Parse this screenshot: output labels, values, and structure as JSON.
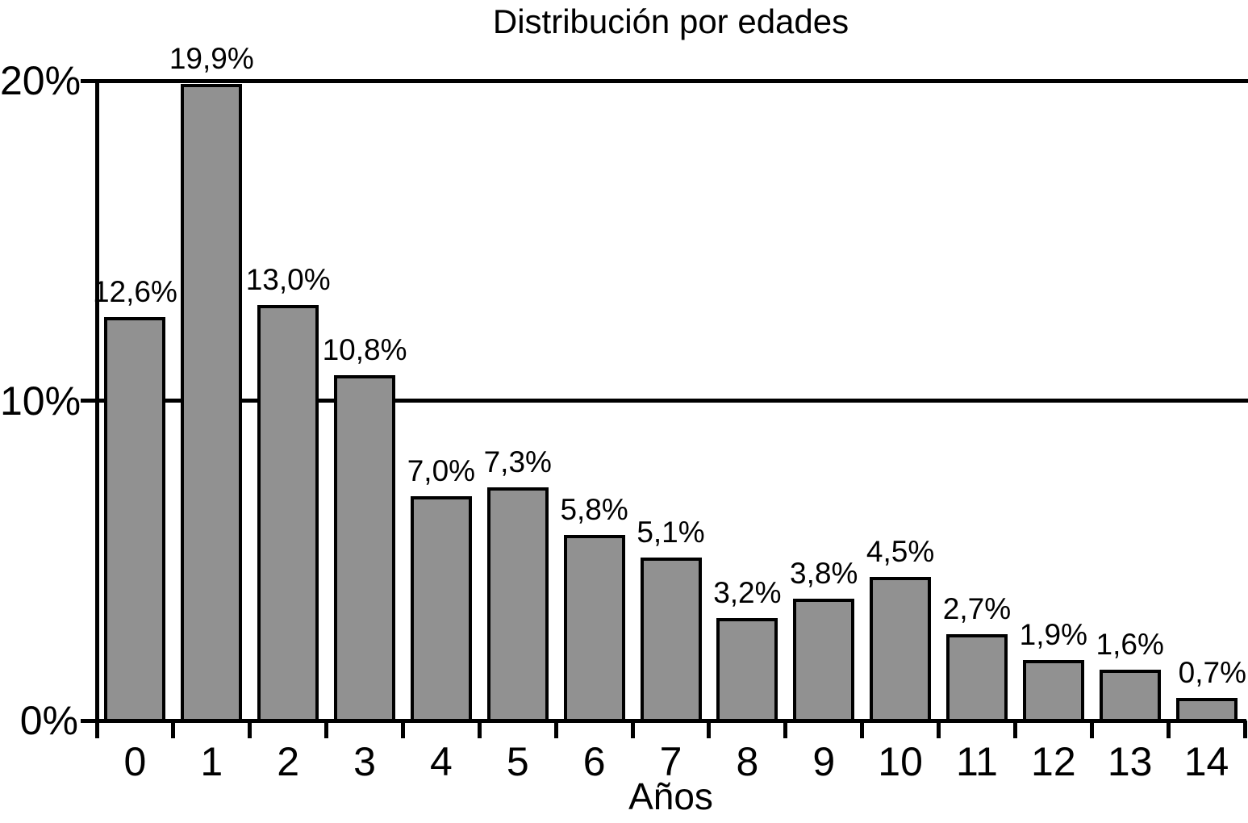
{
  "chart_data": {
    "type": "bar",
    "title": "Distribución por edades",
    "xlabel": "Años",
    "ylabel": "",
    "categories": [
      "0",
      "1",
      "2",
      "3",
      "4",
      "5",
      "6",
      "7",
      "8",
      "9",
      "10",
      "11",
      "12",
      "13",
      "14"
    ],
    "values": [
      12.6,
      19.9,
      13.0,
      10.8,
      7.0,
      7.3,
      5.8,
      5.1,
      3.2,
      3.8,
      4.5,
      2.7,
      1.9,
      1.6,
      0.7
    ],
    "bar_labels": [
      "12,6%",
      "19,9%",
      "13,0%",
      "10,8%",
      "7,0%",
      "7,3%",
      "5,8%",
      "5,1%",
      "3,2%",
      "3,8%",
      "4,5%",
      "2,7%",
      "1,9%",
      "1,6%",
      "0,7%"
    ],
    "y_axis": {
      "ylim": [
        0,
        20
      ],
      "ticks": [
        {
          "label": "20%",
          "value": 20
        },
        {
          "label": "10%",
          "value": 10
        },
        {
          "label": "0%",
          "value": 0
        }
      ]
    },
    "grid": "horizontal gridlines at labeled y ticks",
    "legend_position": "none",
    "colors": {
      "bar_fill": "#919191",
      "bar_border": "#000000",
      "axis": "#000000",
      "text": "#000000",
      "background": "#ffffff"
    }
  }
}
